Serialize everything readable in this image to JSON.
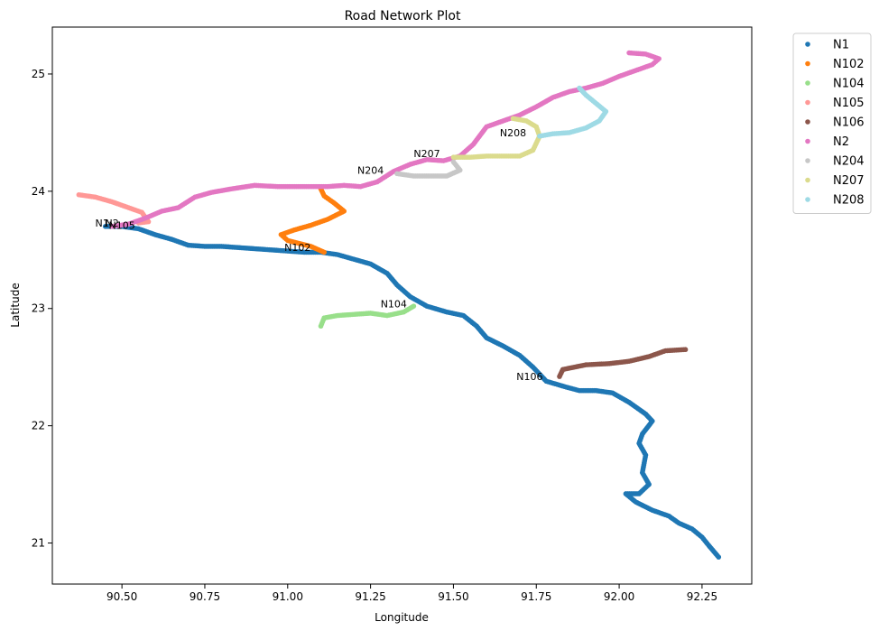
{
  "chart_data": {
    "type": "scatter",
    "title": "Road Network Plot",
    "xlabel": "Longitude",
    "ylabel": "Latitude",
    "xlim": [
      90.29,
      92.4
    ],
    "ylim": [
      20.65,
      25.4
    ],
    "xticks": [
      90.5,
      90.75,
      91.0,
      91.25,
      91.5,
      91.75,
      92.0,
      92.25
    ],
    "xtick_labels": [
      "90.50",
      "90.75",
      "91.00",
      "91.25",
      "91.50",
      "91.75",
      "92.00",
      "92.25"
    ],
    "yticks": [
      21,
      22,
      23,
      24,
      25
    ],
    "ytick_labels": [
      "21",
      "22",
      "23",
      "24",
      "25"
    ],
    "grid": false,
    "legend_position": "outside upper right",
    "series": [
      {
        "name": "N1",
        "color": "#1f77b4",
        "points": [
          [
            90.45,
            23.7
          ],
          [
            90.5,
            23.7
          ],
          [
            90.55,
            23.68
          ],
          [
            90.6,
            23.63
          ],
          [
            90.65,
            23.59
          ],
          [
            90.7,
            23.54
          ],
          [
            90.75,
            23.53
          ],
          [
            90.8,
            23.53
          ],
          [
            90.85,
            23.52
          ],
          [
            90.9,
            23.51
          ],
          [
            90.95,
            23.5
          ],
          [
            91.0,
            23.49
          ],
          [
            91.05,
            23.48
          ],
          [
            91.1,
            23.48
          ],
          [
            91.15,
            23.46
          ],
          [
            91.2,
            23.42
          ],
          [
            91.25,
            23.38
          ],
          [
            91.3,
            23.3
          ],
          [
            91.33,
            23.2
          ],
          [
            91.37,
            23.1
          ],
          [
            91.42,
            23.02
          ],
          [
            91.48,
            22.97
          ],
          [
            91.53,
            22.94
          ],
          [
            91.57,
            22.85
          ],
          [
            91.6,
            22.75
          ],
          [
            91.65,
            22.68
          ],
          [
            91.7,
            22.6
          ],
          [
            91.74,
            22.5
          ],
          [
            91.78,
            22.38
          ],
          [
            91.84,
            22.33
          ],
          [
            91.88,
            22.3
          ],
          [
            91.93,
            22.3
          ],
          [
            91.98,
            22.28
          ],
          [
            92.03,
            22.2
          ],
          [
            92.08,
            22.1
          ],
          [
            92.1,
            22.04
          ],
          [
            92.07,
            21.93
          ],
          [
            92.06,
            21.85
          ],
          [
            92.08,
            21.75
          ],
          [
            92.07,
            21.6
          ],
          [
            92.09,
            21.5
          ],
          [
            92.06,
            21.42
          ],
          [
            92.02,
            21.42
          ],
          [
            92.05,
            21.35
          ],
          [
            92.1,
            21.28
          ],
          [
            92.15,
            21.23
          ],
          [
            92.18,
            21.17
          ],
          [
            92.22,
            21.12
          ],
          [
            92.25,
            21.05
          ],
          [
            92.27,
            20.98
          ],
          [
            92.3,
            20.88
          ]
        ]
      },
      {
        "name": "N102",
        "color": "#ff7f0e",
        "points": [
          [
            91.11,
            23.48
          ],
          [
            91.07,
            23.53
          ],
          [
            91.0,
            23.58
          ],
          [
            90.98,
            23.63
          ],
          [
            91.02,
            23.67
          ],
          [
            91.07,
            23.71
          ],
          [
            91.12,
            23.76
          ],
          [
            91.17,
            23.83
          ],
          [
            91.14,
            23.9
          ],
          [
            91.11,
            23.96
          ],
          [
            91.1,
            24.02
          ]
        ]
      },
      {
        "name": "N104",
        "color": "#98df8a",
        "points": [
          [
            91.1,
            22.85
          ],
          [
            91.11,
            22.92
          ],
          [
            91.15,
            22.94
          ],
          [
            91.2,
            22.95
          ],
          [
            91.25,
            22.96
          ],
          [
            91.3,
            22.94
          ],
          [
            91.35,
            22.97
          ],
          [
            91.38,
            23.02
          ]
        ]
      },
      {
        "name": "N105",
        "color": "#ff9896",
        "points": [
          [
            90.37,
            23.97
          ],
          [
            90.42,
            23.95
          ],
          [
            90.47,
            23.91
          ],
          [
            90.52,
            23.86
          ],
          [
            90.56,
            23.82
          ],
          [
            90.58,
            23.74
          ],
          [
            90.55,
            23.73
          ]
        ]
      },
      {
        "name": "N106",
        "color": "#8c564b",
        "points": [
          [
            91.82,
            22.42
          ],
          [
            91.83,
            22.48
          ],
          [
            91.9,
            22.52
          ],
          [
            91.97,
            22.53
          ],
          [
            92.03,
            22.55
          ],
          [
            92.09,
            22.59
          ],
          [
            92.14,
            22.64
          ],
          [
            92.2,
            22.65
          ]
        ]
      },
      {
        "name": "N2",
        "color": "#e377c2",
        "points": [
          [
            90.47,
            23.7
          ],
          [
            90.52,
            23.72
          ],
          [
            90.57,
            23.77
          ],
          [
            90.62,
            23.83
          ],
          [
            90.67,
            23.86
          ],
          [
            90.72,
            23.95
          ],
          [
            90.77,
            23.99
          ],
          [
            90.83,
            24.02
          ],
          [
            90.9,
            24.05
          ],
          [
            90.97,
            24.04
          ],
          [
            91.05,
            24.04
          ],
          [
            91.12,
            24.04
          ],
          [
            91.17,
            24.05
          ],
          [
            91.22,
            24.04
          ],
          [
            91.27,
            24.08
          ],
          [
            91.32,
            24.17
          ],
          [
            91.37,
            24.23
          ],
          [
            91.42,
            24.27
          ],
          [
            91.47,
            24.26
          ],
          [
            91.52,
            24.3
          ],
          [
            91.56,
            24.4
          ],
          [
            91.6,
            24.55
          ],
          [
            91.65,
            24.6
          ],
          [
            91.7,
            24.65
          ],
          [
            91.75,
            24.72
          ],
          [
            91.8,
            24.8
          ],
          [
            91.85,
            24.85
          ],
          [
            91.9,
            24.88
          ],
          [
            91.95,
            24.92
          ],
          [
            92.0,
            24.98
          ],
          [
            92.05,
            25.03
          ],
          [
            92.1,
            25.08
          ],
          [
            92.12,
            25.13
          ],
          [
            92.08,
            25.17
          ],
          [
            92.03,
            25.18
          ]
        ]
      },
      {
        "name": "N204",
        "color": "#c7c7c7",
        "points": [
          [
            91.33,
            24.15
          ],
          [
            91.38,
            24.13
          ],
          [
            91.43,
            24.13
          ],
          [
            91.48,
            24.13
          ],
          [
            91.52,
            24.18
          ],
          [
            91.5,
            24.25
          ]
        ]
      },
      {
        "name": "N207",
        "color": "#dbdb8d",
        "points": [
          [
            91.5,
            24.29
          ],
          [
            91.55,
            24.29
          ],
          [
            91.6,
            24.3
          ],
          [
            91.65,
            24.3
          ],
          [
            91.7,
            24.3
          ],
          [
            91.74,
            24.35
          ],
          [
            91.76,
            24.47
          ],
          [
            91.75,
            24.55
          ],
          [
            91.72,
            24.6
          ],
          [
            91.68,
            24.62
          ]
        ]
      },
      {
        "name": "N208",
        "color": "#9edae5",
        "points": [
          [
            91.76,
            24.47
          ],
          [
            91.8,
            24.49
          ],
          [
            91.85,
            24.5
          ],
          [
            91.9,
            24.54
          ],
          [
            91.94,
            24.6
          ],
          [
            91.96,
            24.68
          ],
          [
            91.93,
            24.75
          ],
          [
            91.9,
            24.82
          ],
          [
            91.88,
            24.88
          ]
        ]
      }
    ],
    "annotations": [
      {
        "text": "N1",
        "x": 90.44,
        "y": 23.7
      },
      {
        "text": "N2",
        "x": 90.47,
        "y": 23.7
      },
      {
        "text": "N105",
        "x": 90.5,
        "y": 23.68
      },
      {
        "text": "N102",
        "x": 91.03,
        "y": 23.49
      },
      {
        "text": "N104",
        "x": 91.32,
        "y": 23.01
      },
      {
        "text": "N106",
        "x": 91.73,
        "y": 22.39
      },
      {
        "text": "N204",
        "x": 91.25,
        "y": 24.15
      },
      {
        "text": "N207",
        "x": 91.42,
        "y": 24.29
      },
      {
        "text": "N208",
        "x": 91.68,
        "y": 24.47
      }
    ]
  }
}
